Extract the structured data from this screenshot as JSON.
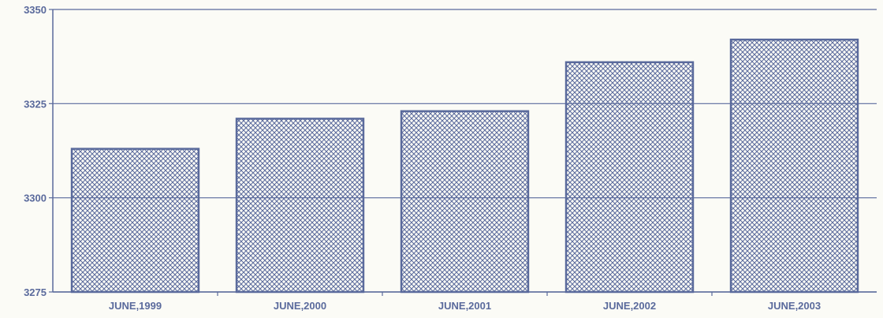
{
  "chart_data": {
    "type": "bar",
    "title": "",
    "xlabel": "",
    "ylabel": "",
    "categories": [
      "JUNE,1999",
      "JUNE,2000",
      "JUNE,2001",
      "JUNE,2002",
      "JUNE,2003"
    ],
    "values": [
      3313,
      3321,
      3323,
      3336,
      3342
    ],
    "ylim": [
      3275,
      3350
    ],
    "yticks": [
      3275,
      3300,
      3325,
      3350
    ],
    "ytick_labels": [
      "3275",
      "3300",
      "3325",
      "3350"
    ],
    "grid": true,
    "legend": "none",
    "bar_fill": "crosshatch"
  },
  "colors": {
    "ink": "#5a6a9c",
    "bar_fill": "#ffffff",
    "background": "#fbfbf6"
  }
}
